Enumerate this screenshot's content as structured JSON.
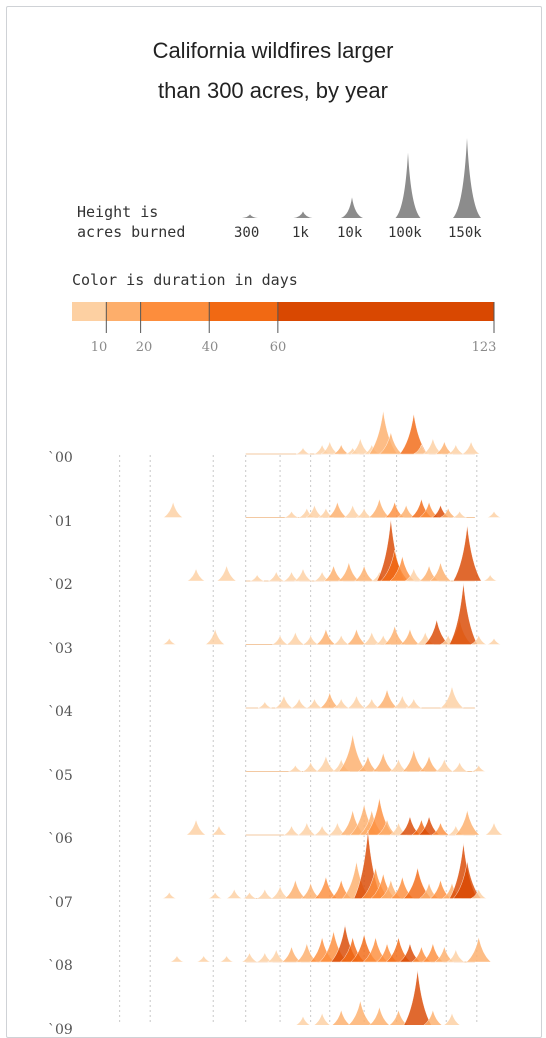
{
  "title_line1": "California wildfires larger",
  "title_line2": "than 300 acres, by year",
  "height_legend": {
    "label_line1": "Height is",
    "label_line2": "acres burned",
    "sizes": [
      {
        "label": "300",
        "acres": 300
      },
      {
        "label": "1k",
        "acres": 1000
      },
      {
        "label": "10k",
        "acres": 10000
      },
      {
        "label": "100k",
        "acres": 100000
      },
      {
        "label": "150k",
        "acres": 150000
      }
    ]
  },
  "color_legend": {
    "title": "Color is duration in days",
    "ticks": [
      "10",
      "20",
      "40",
      "60",
      "123"
    ],
    "bins": [
      {
        "from": 0,
        "to": 10,
        "color": "#fdd0a2"
      },
      {
        "from": 10,
        "to": 20,
        "color": "#fdae6b"
      },
      {
        "from": 20,
        "to": 40,
        "color": "#fd8d3c"
      },
      {
        "from": 40,
        "to": 60,
        "color": "#f16913"
      },
      {
        "from": 60,
        "to": 123,
        "color": "#d94801"
      }
    ]
  },
  "chart_data": {
    "type": "area",
    "description_free": true,
    "rows": [
      {
        "label": "`00",
        "fires": [
          [
            0.5,
            2,
            6
          ],
          [
            0.55,
            3,
            8
          ],
          [
            0.57,
            4,
            5
          ],
          [
            0.6,
            3,
            12
          ],
          [
            0.63,
            2,
            5
          ],
          [
            0.65,
            5,
            8
          ],
          [
            0.68,
            3,
            6
          ],
          [
            0.71,
            14,
            15
          ],
          [
            0.73,
            7,
            12
          ],
          [
            0.79,
            13,
            55
          ],
          [
            0.81,
            3,
            8
          ],
          [
            0.84,
            5,
            8
          ],
          [
            0.87,
            4,
            12
          ],
          [
            0.9,
            3,
            8
          ],
          [
            0.94,
            4,
            9
          ]
        ]
      },
      {
        "label": "`01",
        "fires": [
          [
            0.16,
            5,
            8
          ],
          [
            0.47,
            2,
            5
          ],
          [
            0.51,
            3,
            6
          ],
          [
            0.53,
            4,
            9
          ],
          [
            0.56,
            3,
            8
          ],
          [
            0.59,
            5,
            12
          ],
          [
            0.63,
            4,
            9
          ],
          [
            0.66,
            3,
            8
          ],
          [
            0.7,
            6,
            12
          ],
          [
            0.74,
            5,
            25
          ],
          [
            0.77,
            4,
            15
          ],
          [
            0.81,
            6,
            45
          ],
          [
            0.83,
            5,
            22
          ],
          [
            0.86,
            4,
            65
          ],
          [
            0.88,
            3,
            12
          ],
          [
            0.91,
            2,
            8
          ],
          [
            1.0,
            2,
            6
          ]
        ]
      },
      {
        "label": "`02",
        "fires": [
          [
            0.22,
            4,
            8
          ],
          [
            0.3,
            5,
            10
          ],
          [
            0.38,
            2,
            6
          ],
          [
            0.43,
            3,
            6
          ],
          [
            0.47,
            3,
            8
          ],
          [
            0.5,
            4,
            9
          ],
          [
            0.55,
            3,
            8
          ],
          [
            0.58,
            5,
            12
          ],
          [
            0.62,
            6,
            15
          ],
          [
            0.66,
            5,
            18
          ],
          [
            0.7,
            3,
            8
          ],
          [
            0.73,
            20,
            70
          ],
          [
            0.74,
            10,
            45
          ],
          [
            0.76,
            8,
            25
          ],
          [
            0.79,
            4,
            9
          ],
          [
            0.83,
            5,
            12
          ],
          [
            0.86,
            6,
            15
          ],
          [
            0.93,
            18,
            75
          ],
          [
            0.99,
            2,
            6
          ]
        ]
      },
      {
        "label": "`03",
        "fires": [
          [
            0.15,
            2,
            6
          ],
          [
            0.27,
            5,
            10
          ],
          [
            0.44,
            3,
            8
          ],
          [
            0.48,
            4,
            9
          ],
          [
            0.52,
            3,
            8
          ],
          [
            0.56,
            5,
            12
          ],
          [
            0.6,
            3,
            8
          ],
          [
            0.64,
            5,
            12
          ],
          [
            0.68,
            4,
            9
          ],
          [
            0.71,
            3,
            8
          ],
          [
            0.74,
            6,
            15
          ],
          [
            0.78,
            5,
            12
          ],
          [
            0.82,
            4,
            9
          ],
          [
            0.85,
            8,
            65
          ],
          [
            0.88,
            3,
            8
          ],
          [
            0.91,
            8,
            14
          ],
          [
            0.92,
            20,
            75
          ],
          [
            0.96,
            3,
            8
          ],
          [
            1.0,
            2,
            6
          ]
        ]
      },
      {
        "label": "`04",
        "fires": [
          [
            0.4,
            2,
            5
          ],
          [
            0.45,
            4,
            9
          ],
          [
            0.49,
            3,
            8
          ],
          [
            0.53,
            3,
            8
          ],
          [
            0.57,
            5,
            12
          ],
          [
            0.6,
            3,
            8
          ],
          [
            0.64,
            4,
            9
          ],
          [
            0.68,
            3,
            8
          ],
          [
            0.72,
            6,
            12
          ],
          [
            0.76,
            4,
            9
          ],
          [
            0.79,
            3,
            8
          ],
          [
            0.89,
            7,
            10
          ]
        ]
      },
      {
        "label": "`05",
        "fires": [
          [
            0.48,
            2,
            6
          ],
          [
            0.52,
            3,
            8
          ],
          [
            0.56,
            5,
            8
          ],
          [
            0.6,
            4,
            9
          ],
          [
            0.63,
            12,
            12
          ],
          [
            0.67,
            5,
            12
          ],
          [
            0.71,
            6,
            15
          ],
          [
            0.75,
            4,
            9
          ],
          [
            0.79,
            7,
            12
          ],
          [
            0.83,
            5,
            12
          ],
          [
            0.87,
            4,
            9
          ],
          [
            0.91,
            3,
            8
          ],
          [
            0.96,
            2,
            6
          ]
        ]
      },
      {
        "label": "`06",
        "fires": [
          [
            0.22,
            5,
            8
          ],
          [
            0.28,
            3,
            6
          ],
          [
            0.47,
            3,
            8
          ],
          [
            0.51,
            4,
            9
          ],
          [
            0.55,
            3,
            8
          ],
          [
            0.59,
            4,
            9
          ],
          [
            0.63,
            8,
            15
          ],
          [
            0.66,
            10,
            18
          ],
          [
            0.68,
            8,
            15
          ],
          [
            0.7,
            12,
            25
          ],
          [
            0.72,
            5,
            12
          ],
          [
            0.75,
            4,
            9
          ],
          [
            0.78,
            6,
            65
          ],
          [
            0.81,
            5,
            45
          ],
          [
            0.83,
            6,
            65
          ],
          [
            0.86,
            4,
            25
          ],
          [
            0.9,
            3,
            8
          ],
          [
            0.93,
            8,
            15
          ],
          [
            1.0,
            4,
            9
          ]
        ]
      },
      {
        "label": "`07",
        "fires": [
          [
            0.15,
            2,
            8
          ],
          [
            0.27,
            2,
            6
          ],
          [
            0.32,
            3,
            8
          ],
          [
            0.36,
            2,
            6
          ],
          [
            0.4,
            3,
            8
          ],
          [
            0.44,
            4,
            9
          ],
          [
            0.48,
            6,
            12
          ],
          [
            0.52,
            5,
            12
          ],
          [
            0.56,
            7,
            25
          ],
          [
            0.6,
            6,
            30
          ],
          [
            0.64,
            12,
            15
          ],
          [
            0.67,
            22,
            95
          ],
          [
            0.69,
            10,
            40
          ],
          [
            0.71,
            8,
            25
          ],
          [
            0.73,
            6,
            12
          ],
          [
            0.76,
            7,
            35
          ],
          [
            0.8,
            10,
            45
          ],
          [
            0.83,
            5,
            15
          ],
          [
            0.86,
            6,
            25
          ],
          [
            0.89,
            5,
            12
          ],
          [
            0.92,
            18,
            75
          ],
          [
            0.93,
            12,
            65
          ],
          [
            0.96,
            3,
            8
          ]
        ]
      },
      {
        "label": "`08",
        "fires": [
          [
            0.17,
            2,
            6
          ],
          [
            0.24,
            2,
            6
          ],
          [
            0.3,
            2,
            6
          ],
          [
            0.36,
            3,
            8
          ],
          [
            0.4,
            3,
            8
          ],
          [
            0.43,
            4,
            9
          ],
          [
            0.47,
            5,
            12
          ],
          [
            0.51,
            6,
            15
          ],
          [
            0.55,
            8,
            25
          ],
          [
            0.58,
            10,
            35
          ],
          [
            0.61,
            12,
            65
          ],
          [
            0.63,
            8,
            45
          ],
          [
            0.66,
            9,
            55
          ],
          [
            0.69,
            8,
            30
          ],
          [
            0.72,
            6,
            25
          ],
          [
            0.75,
            8,
            45
          ],
          [
            0.78,
            6,
            65
          ],
          [
            0.81,
            5,
            25
          ],
          [
            0.84,
            6,
            30
          ],
          [
            0.87,
            5,
            12
          ],
          [
            0.9,
            4,
            9
          ],
          [
            0.96,
            8,
            15
          ]
        ]
      },
      {
        "label": "`09",
        "fires": [
          [
            0.5,
            3,
            8
          ],
          [
            0.55,
            4,
            9
          ],
          [
            0.6,
            5,
            12
          ],
          [
            0.65,
            8,
            15
          ],
          [
            0.7,
            6,
            12
          ],
          [
            0.75,
            5,
            12
          ],
          [
            0.8,
            18,
            75
          ],
          [
            0.84,
            5,
            12
          ],
          [
            0.89,
            4,
            9
          ]
        ]
      }
    ],
    "x_range": [
      0,
      1
    ],
    "gridlines": "dotted vertical"
  }
}
